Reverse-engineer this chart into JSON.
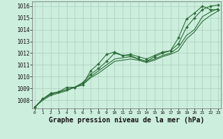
{
  "background_color": "#cceedd",
  "grid_color": "#aaccbb",
  "line_color": "#2d6e3a",
  "marker_color": "#2d6e3a",
  "xlabel": "Graphe pression niveau de la mer (hPa)",
  "xlabel_fontsize": 7,
  "yticks": [
    1008,
    1009,
    1010,
    1011,
    1012,
    1013,
    1014,
    1015,
    1016
  ],
  "xticks": [
    0,
    1,
    2,
    3,
    4,
    5,
    6,
    7,
    8,
    9,
    10,
    11,
    12,
    13,
    14,
    15,
    16,
    17,
    18,
    19,
    20,
    21,
    22,
    23
  ],
  "xlim": [
    -0.3,
    23.3
  ],
  "ylim": [
    1007.3,
    1016.4
  ],
  "series": [
    {
      "x": [
        0,
        1,
        2,
        3,
        4,
        5,
        6,
        7,
        8,
        9,
        10,
        11,
        12,
        13,
        14,
        15,
        16,
        17,
        18,
        19,
        20,
        21,
        22,
        23
      ],
      "y": [
        1007.4,
        1008.1,
        1008.6,
        1008.7,
        1009.1,
        1009.1,
        1009.3,
        1010.5,
        1011.1,
        1011.9,
        1012.1,
        1011.8,
        1011.8,
        1011.5,
        1011.3,
        1011.7,
        1012.0,
        1012.2,
        1013.3,
        1014.9,
        1015.4,
        1016.0,
        1015.7,
        1015.7
      ],
      "marker": true
    },
    {
      "x": [
        0,
        1,
        2,
        3,
        4,
        5,
        6,
        7,
        8,
        9,
        10,
        11,
        12,
        13,
        14,
        15,
        16,
        17,
        18,
        19,
        20,
        21,
        22,
        23
      ],
      "y": [
        1007.4,
        1008.1,
        1008.5,
        1008.7,
        1008.9,
        1009.1,
        1009.5,
        1010.2,
        1010.7,
        1011.3,
        1012.0,
        1011.8,
        1011.9,
        1011.7,
        1011.5,
        1011.8,
        1012.1,
        1012.2,
        1012.8,
        1014.2,
        1015.0,
        1015.7,
        1016.0,
        1016.1
      ],
      "marker": true
    },
    {
      "x": [
        0,
        1,
        2,
        3,
        4,
        5,
        6,
        7,
        8,
        9,
        10,
        11,
        12,
        13,
        14,
        15,
        16,
        17,
        18,
        19,
        20,
        21,
        22,
        23
      ],
      "y": [
        1007.4,
        1008.1,
        1008.5,
        1008.7,
        1008.9,
        1009.1,
        1009.4,
        1010.0,
        1010.5,
        1011.0,
        1011.5,
        1011.6,
        1011.7,
        1011.5,
        1011.3,
        1011.5,
        1011.8,
        1012.0,
        1012.5,
        1013.5,
        1014.0,
        1015.1,
        1015.5,
        1015.8
      ],
      "marker": false
    },
    {
      "x": [
        0,
        1,
        2,
        3,
        4,
        5,
        6,
        7,
        8,
        9,
        10,
        11,
        12,
        13,
        14,
        15,
        16,
        17,
        18,
        19,
        20,
        21,
        22,
        23
      ],
      "y": [
        1007.4,
        1008.0,
        1008.4,
        1008.6,
        1008.8,
        1009.1,
        1009.3,
        1009.9,
        1010.3,
        1010.8,
        1011.3,
        1011.4,
        1011.5,
        1011.4,
        1011.2,
        1011.4,
        1011.7,
        1011.9,
        1012.2,
        1013.2,
        1013.8,
        1014.7,
        1015.2,
        1015.6
      ],
      "marker": false
    }
  ]
}
